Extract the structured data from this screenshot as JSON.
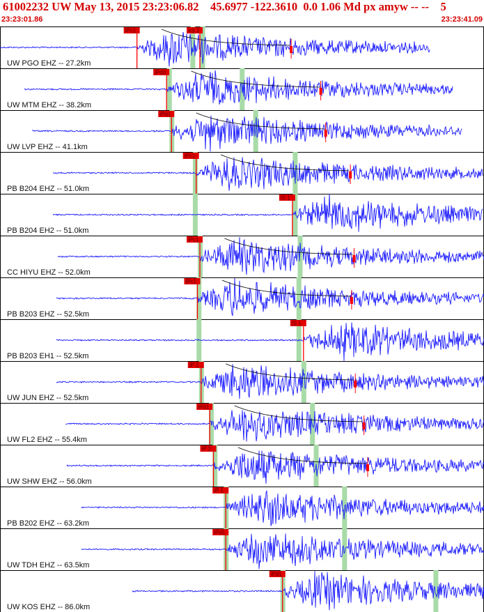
{
  "header": {
    "title": "61002232 UW May 13, 2015 23:23:06.82    45.6977 -122.3610  0.0 1.06 Md px amyw -- --    5",
    "start_time": "23:23:01.86",
    "end_time": "23:23:41.09"
  },
  "colors": {
    "trace": "#1a1aff",
    "pick": "#ff0000",
    "pick_box": "#e00000",
    "green_band": "#a8dba8",
    "frame": "#000000",
    "decay_curve": "#000000"
  },
  "chart_data": {
    "type": "seismogram",
    "time_start": "23:23:01.86",
    "time_end": "23:23:41.09",
    "traces": [
      {
        "station": "UW PGO EHZ -- 27.2km",
        "picks": [
          {
            "label": "iPc1",
            "t": 11.1
          },
          {
            "label": "eS 2",
            "t": 16.2
          }
        ],
        "green_bands": [
          15.6,
          16.4
        ],
        "signal_start": 0.0,
        "signal_end": 34.8,
        "coda": true
      },
      {
        "station": "UW MTM EHZ -- 38.2km",
        "picks": [
          {
            "label": "iPd0",
            "t": 13.5
          }
        ],
        "green_bands": [
          13.7,
          19.6
        ],
        "signal_start": 2.0,
        "signal_end": 36.7,
        "coda": true
      },
      {
        "station": "UW LVP EHZ -- 41.1km",
        "picks": [
          {
            "label": "iPd1",
            "t": 13.9
          }
        ],
        "green_bands": [
          13.9,
          20.7
        ],
        "signal_start": 2.6,
        "signal_end": 37.4,
        "coda": true
      },
      {
        "station": "PB B204 EHZ -- 51.0km",
        "picks": [
          {
            "label": "iPc1",
            "t": 15.9
          }
        ],
        "green_bands": [
          15.8,
          23.9
        ],
        "signal_start": 4.3,
        "signal_end": 39.1,
        "coda": true
      },
      {
        "station": "PB B204 EH2 -- 51.0km",
        "picks": [
          {
            "label": "iS 1",
            "t": 23.7
          }
        ],
        "green_bands": [
          15.8,
          23.9
        ],
        "signal_start": 4.3,
        "signal_end": 39.1,
        "coda": false
      },
      {
        "station": "CC HIYU EHZ -- 52.0km",
        "picks": [
          {
            "label": "iPc1",
            "t": 16.2
          }
        ],
        "green_bands": [
          16.2,
          24.3
        ],
        "signal_start": 4.7,
        "signal_end": 39.3,
        "coda": true
      },
      {
        "station": "PB B203 EHZ -- 52.5km",
        "picks": [
          {
            "label": "iPc1",
            "t": 16.0
          }
        ],
        "green_bands": [
          16.1,
          24.2
        ],
        "signal_start": 4.6,
        "signal_end": 39.3,
        "coda": true
      },
      {
        "station": "PB B203 EH1 -- 52.5km",
        "picks": [
          {
            "label": "iS 1",
            "t": 24.6
          }
        ],
        "green_bands": [
          16.1,
          24.2
        ],
        "signal_start": 4.6,
        "signal_end": 39.3,
        "coda": false
      },
      {
        "station": "UW JUN EHZ -- 52.5km",
        "picks": [
          {
            "label": "iP 1",
            "t": 16.3
          }
        ],
        "green_bands": [
          16.3,
          24.6
        ],
        "signal_start": 4.6,
        "signal_end": 39.3,
        "coda": true
      },
      {
        "station": "UW FL2 EHZ -- 55.4km",
        "picks": [
          {
            "label": "iPd1",
            "t": 17.0
          }
        ],
        "green_bands": [
          17.1,
          25.3
        ],
        "signal_start": 5.3,
        "signal_end": 40.0,
        "coda": true
      },
      {
        "station": "UW SHW EHZ -- 56.0km",
        "picks": [
          {
            "label": "iP 2",
            "t": 17.3
          }
        ],
        "green_bands": [
          17.4,
          25.6
        ],
        "signal_start": 5.4,
        "signal_end": 40.1,
        "coda": true
      },
      {
        "station": "PB B202 EHZ -- 63.2km",
        "picks": [
          {
            "label": "iP 1",
            "t": 18.3
          }
        ],
        "green_bands": [
          18.3,
          27.9
        ],
        "signal_start": 6.6,
        "signal_end": 41.4,
        "coda": false
      },
      {
        "station": "UW TDH EHZ -- 63.5km",
        "picks": [
          {
            "label": "iPd1",
            "t": 18.3
          }
        ],
        "green_bands": [
          18.3,
          27.9
        ],
        "signal_start": 6.6,
        "signal_end": 41.4,
        "coda": false
      },
      {
        "station": "UW KOS EHZ -- 86.0km",
        "picks": [
          {
            "label": "iPd1",
            "t": 22.9
          }
        ],
        "green_bands": [
          22.9,
          35.3
        ],
        "signal_start": 10.7,
        "signal_end": 45.4,
        "coda": false
      }
    ]
  }
}
